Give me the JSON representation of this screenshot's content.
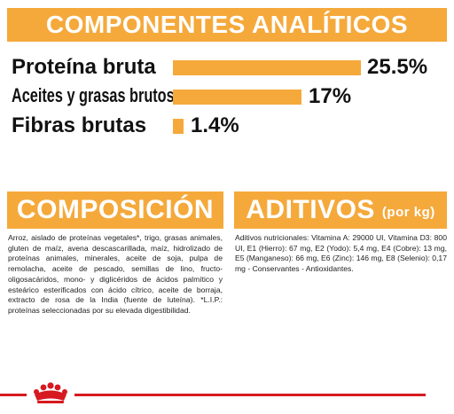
{
  "header": {
    "title": "COMPONENTES ANALÍTICOS"
  },
  "nutrients": [
    {
      "label": "Proteína bruta",
      "value_text": "25.5%",
      "value": 25.5,
      "color": "#f5a93b"
    },
    {
      "label": "Aceites y grasas brutos",
      "value_text": "17%",
      "value": 17,
      "color": "#f5a93b"
    },
    {
      "label": "Fibras brutas",
      "value_text": "1.4%",
      "value": 1.4,
      "color": "#f5a93b"
    }
  ],
  "composition": {
    "title": "COMPOSICIÓN",
    "text": "Arroz, aislado de proteínas vegetales*, trigo, grasas animales, gluten de maíz, avena descascarillada, maíz, hidrolizado de proteínas animales, minerales, aceite de soja, pulpa de remolacha, aceite de pescado, semillas de lino, fructo-oligosacáridos, mono- y diglicéridos de ácidos palmítico y esteárico esterificados con ácido cítrico, aceite de borraja, extracto de rosa de la India (fuente de luteína). *L.I.P.: proteínas seleccionadas por su elevada digestibilidad."
  },
  "additives": {
    "title": "ADITIVOS",
    "title_suffix": "(por kg)",
    "text": "Aditivos nutricionales: Vitamina A: 29000 UI, Vitamina D3: 800 UI, E1 (Hierro): 67 mg, E2 (Yodo): 5,4 mg, E4 (Cobre): 13 mg, E5 (Manganeso): 66 mg, E6 (Zinc): 146 mg, E8 (Selenio): 0,17 mg - Conservantes - Antioxidantes."
  },
  "colors": {
    "accent": "#f5a93b",
    "brand_red": "#d71920"
  },
  "footer": {
    "logo_icon": "royal-canin-crown-icon"
  }
}
